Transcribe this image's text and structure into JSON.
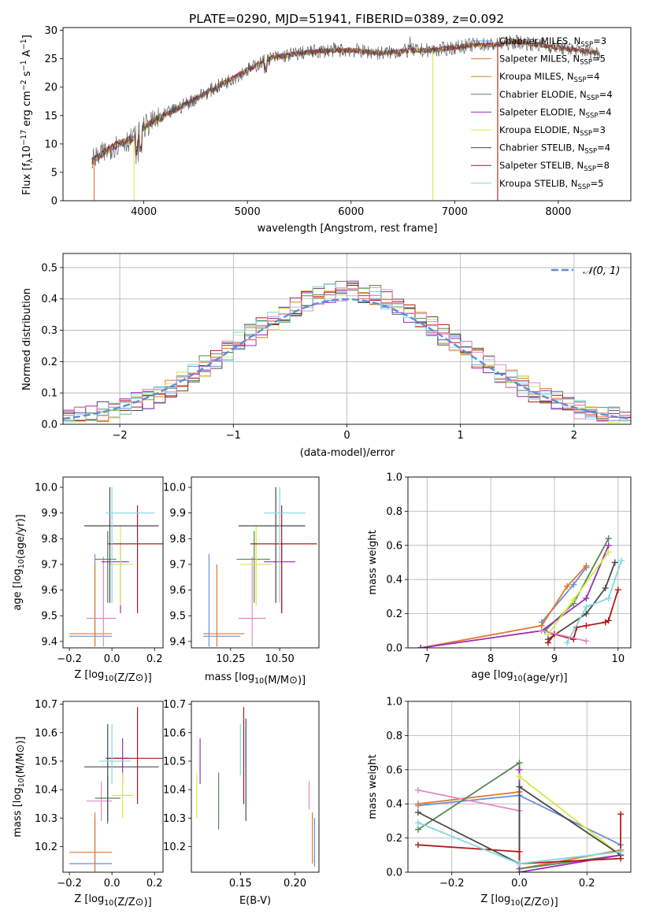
{
  "title": "PLATE=0290, MJD=51941, FIBERID=0389, z=0.092",
  "colors": {
    "Chabrier MILES": "#6a8fd8",
    "Salpeter MILES": "#e4772e",
    "Kroupa MILES": "#d2871e",
    "Chabrier ELODIE": "#558a55",
    "Salpeter ELODIE": "#9b2cb8",
    "Kroupa ELODIE": "#d7e84a",
    "Chabrier STELIB": "#4a4a4a",
    "Salpeter STELIB": "#b01a1a",
    "Kroupa STELIB": "#7fd8e0",
    "pink": "#e58ac0",
    "grid": "#b0b0b0",
    "dashed": "#5b8fd6"
  },
  "chart_data": [
    {
      "type": "line",
      "title": "PLATE=0290, MJD=51941, FIBERID=0389, z=0.092",
      "xlabel": "wavelength [Angstrom, rest frame]",
      "ylabel_parts": [
        "Flux [f",
        "λ",
        "10",
        "−17",
        " erg cm",
        "−2",
        " s",
        "−1",
        " A",
        "−1",
        "]"
      ],
      "xlim": [
        3220,
        8700
      ],
      "ylim": [
        0,
        30.5
      ],
      "xticks": [
        4000,
        5000,
        6000,
        7000,
        8000
      ],
      "yticks": [
        0,
        5,
        10,
        15,
        20,
        25,
        30
      ],
      "grid": false,
      "legend_position": "right",
      "legend": [
        {
          "name": "Chabrier MILES",
          "nssp": "3"
        },
        {
          "name": "Salpeter MILES",
          "nssp": "5"
        },
        {
          "name": "Kroupa MILES",
          "nssp": "4"
        },
        {
          "name": "Chabrier ELODIE",
          "nssp": "4"
        },
        {
          "name": "Salpeter ELODIE",
          "nssp": "4"
        },
        {
          "name": "Kroupa ELODIE",
          "nssp": "3"
        },
        {
          "name": "Chabrier STELIB",
          "nssp": "4"
        },
        {
          "name": "Salpeter STELIB",
          "nssp": "8"
        },
        {
          "name": "Kroupa STELIB",
          "nssp": "5"
        }
      ],
      "continuum": {
        "x": [
          3500,
          3700,
          3900,
          4000,
          4200,
          4500,
          4800,
          5000,
          5200,
          5500,
          5800,
          6000,
          6300,
          6600,
          6800,
          7000,
          7200,
          7400,
          7600,
          7800,
          8000,
          8200,
          8400
        ],
        "y": [
          7,
          9.5,
          11,
          13,
          15,
          18,
          21,
          23,
          25,
          26,
          26.5,
          26.5,
          26,
          26.5,
          26.5,
          27,
          27.5,
          27.5,
          28,
          27.5,
          27,
          26.5,
          26
        ]
      }
    },
    {
      "type": "histogram",
      "xlabel": "(data-model)/error",
      "ylabel": "Normed distribution",
      "xlim": [
        -2.5,
        2.5
      ],
      "ylim": [
        0,
        0.545
      ],
      "xticks": [
        -2,
        -1,
        0,
        1,
        2
      ],
      "xtick_labels": [
        "−2",
        "−1",
        "0",
        "1",
        "2"
      ],
      "yticks": [
        0,
        0.1,
        0.2,
        0.3,
        0.4,
        0.5
      ],
      "ytick_labels": [
        "0.0",
        "0.1",
        "0.2",
        "0.3",
        "0.4",
        "0.5"
      ],
      "grid": true,
      "legend": "𝒩(0, 1)",
      "legend_position": "top-right",
      "curve": "normal(0,1)"
    },
    {
      "type": "errorbar",
      "xlabel": "Z [log10(Z/Z⊙)]",
      "ylabel": "age  [log10(age/yr)]",
      "xlim": [
        -0.23,
        0.24
      ],
      "ylim": [
        9.375,
        10.04
      ],
      "xticks": [
        -0.2,
        0.0,
        0.2
      ],
      "xtick_labels": [
        "−0.2",
        "0.0",
        "0.2"
      ],
      "yticks": [
        9.4,
        9.5,
        9.6,
        9.7,
        9.8,
        9.9,
        10.0
      ],
      "ytick_labels": [
        "9.4",
        "9.5",
        "9.6",
        "9.7",
        "9.8",
        "9.9",
        "10.0"
      ],
      "points": [
        {
          "series": "Chabrier MILES",
          "x": -0.08,
          "xlo": -0.2,
          "xhi": 0.0,
          "y": 9.42,
          "ylo": 9.38,
          "yhi": 9.74
        },
        {
          "series": "Salpeter MILES",
          "x": -0.08,
          "xlo": -0.2,
          "xhi": 0.0,
          "y": 9.43,
          "ylo": 9.38,
          "yhi": 9.7
        },
        {
          "series": "pink",
          "x": -0.04,
          "xlo": -0.12,
          "xhi": 0.02,
          "y": 9.49,
          "ylo": 9.38,
          "yhi": 9.73
        },
        {
          "series": "Chabrier ELODIE",
          "x": -0.02,
          "xlo": -0.08,
          "xhi": 0.02,
          "y": 9.72,
          "ylo": 9.55,
          "yhi": 9.83
        },
        {
          "series": "Salpeter ELODIE",
          "x": 0.04,
          "xlo": -0.05,
          "xhi": 0.08,
          "y": 9.71,
          "ylo": 9.51,
          "yhi": 9.79
        },
        {
          "series": "Kroupa ELODIE",
          "x": 0.04,
          "xlo": -0.02,
          "xhi": 0.1,
          "y": 9.7,
          "ylo": 9.54,
          "yhi": 9.85
        },
        {
          "series": "Chabrier STELIB",
          "x": -0.01,
          "xlo": -0.13,
          "xhi": 0.22,
          "y": 9.85,
          "ylo": 9.55,
          "yhi": 10.0
        },
        {
          "series": "Salpeter STELIB",
          "x": 0.12,
          "xlo": -0.02,
          "xhi": 0.26,
          "y": 9.78,
          "ylo": 9.51,
          "yhi": 9.93
        },
        {
          "series": "Kroupa STELIB",
          "x": 0.0,
          "xlo": -0.03,
          "xhi": 0.2,
          "y": 9.9,
          "ylo": 9.55,
          "yhi": 10.0
        }
      ]
    },
    {
      "type": "errorbar",
      "xlabel": "mass [log10(M/M⊙)]",
      "ylabel": "",
      "xlim": [
        10.05,
        10.7
      ],
      "ylim": [
        9.375,
        10.04
      ],
      "xticks": [
        10.25,
        10.5
      ],
      "xtick_labels": [
        "10.25",
        "10.50"
      ],
      "yticks": [
        9.4,
        9.5,
        9.6,
        9.7,
        9.8,
        9.9,
        10.0
      ],
      "ytick_labels": [
        "9.4",
        "9.5",
        "9.6",
        "9.7",
        "9.8",
        "9.9",
        "10.0"
      ]
    },
    {
      "type": "line",
      "xlabel": "age  [log10(age/yr)]",
      "ylabel": "mass weight",
      "xlim": [
        6.7,
        10.2
      ],
      "ylim": [
        0,
        1.0
      ],
      "xticks": [
        7,
        8,
        9,
        10
      ],
      "xtick_labels": [
        "7",
        "8",
        "9",
        "10"
      ],
      "yticks": [
        0,
        0.2,
        0.4,
        0.6,
        0.8,
        1.0
      ],
      "ytick_labels": [
        "0.0",
        "0.2",
        "0.4",
        "0.6",
        "0.8",
        "1.0"
      ],
      "grid": true,
      "series": [
        {
          "name": "Chabrier MILES",
          "x": [
            8.8,
            9.3,
            9.5
          ],
          "y": [
            0.15,
            0.37,
            0.47
          ]
        },
        {
          "name": "Salpeter MILES",
          "x": [
            6.9,
            8.8,
            9.2,
            9.5
          ],
          "y": [
            0.0,
            0.13,
            0.36,
            0.48
          ]
        },
        {
          "name": "Chabrier ELODIE",
          "x": [
            8.85,
            9.3,
            9.85
          ],
          "y": [
            0.1,
            0.26,
            0.64
          ]
        },
        {
          "name": "Salpeter ELODIE",
          "x": [
            6.9,
            8.8,
            9.5,
            9.85
          ],
          "y": [
            0.0,
            0.1,
            0.29,
            0.6
          ]
        },
        {
          "name": "Kroupa ELODIE",
          "x": [
            8.9,
            9.3,
            9.85
          ],
          "y": [
            0.08,
            0.28,
            0.56
          ]
        },
        {
          "name": "Chabrier STELIB",
          "x": [
            8.9,
            9.5,
            9.8,
            9.95
          ],
          "y": [
            0.05,
            0.2,
            0.35,
            0.5
          ]
        },
        {
          "name": "Salpeter STELIB",
          "x": [
            8.9,
            9.0,
            9.3,
            9.35,
            9.5,
            9.8,
            9.85,
            10.0
          ],
          "y": [
            0.03,
            0.08,
            0.05,
            0.12,
            0.13,
            0.15,
            0.16,
            0.34
          ]
        },
        {
          "name": "Kroupa STELIB",
          "x": [
            9.2,
            9.5,
            9.85,
            10.05
          ],
          "y": [
            0.03,
            0.24,
            0.29,
            0.51
          ]
        },
        {
          "name": "pink",
          "x": [
            8.8,
            9.5
          ],
          "y": [
            0.1,
            0.04
          ]
        }
      ]
    },
    {
      "type": "errorbar",
      "xlabel": "Z [log10(Z/Z⊙)]",
      "ylabel": "mass [log10(M/M⊙)]",
      "xlim": [
        -0.23,
        0.24
      ],
      "ylim": [
        10.11,
        10.71
      ],
      "xticks": [
        -0.2,
        0.0,
        0.2
      ],
      "xtick_labels": [
        "−0.2",
        "0.0",
        "0.2"
      ],
      "yticks": [
        10.2,
        10.3,
        10.4,
        10.5,
        10.6,
        10.7
      ],
      "ytick_labels": [
        "10.2",
        "10.3",
        "10.4",
        "10.5",
        "10.6",
        "10.7"
      ],
      "points": [
        {
          "series": "Chabrier MILES",
          "x": -0.08,
          "xlo": -0.2,
          "xhi": 0.0,
          "y": 10.14,
          "ylo": 10.11,
          "yhi": 10.3
        },
        {
          "series": "Salpeter MILES",
          "x": -0.08,
          "xlo": -0.2,
          "xhi": 0.0,
          "y": 10.18,
          "ylo": 10.11,
          "yhi": 10.32
        },
        {
          "series": "pink",
          "x": -0.05,
          "xlo": -0.12,
          "xhi": 0.0,
          "y": 10.36,
          "ylo": 10.29,
          "yhi": 10.43
        },
        {
          "series": "Chabrier ELODIE",
          "x": -0.02,
          "xlo": -0.08,
          "xhi": 0.04,
          "y": 10.37,
          "ylo": 10.28,
          "yhi": 10.45
        },
        {
          "series": "Salpeter ELODIE",
          "x": 0.05,
          "xlo": -0.03,
          "xhi": 0.08,
          "y": 10.51,
          "ylo": 10.42,
          "yhi": 10.58
        },
        {
          "series": "Kroupa ELODIE",
          "x": 0.05,
          "xlo": 0.0,
          "xhi": 0.1,
          "y": 10.38,
          "ylo": 10.3,
          "yhi": 10.46
        },
        {
          "series": "Chabrier STELIB",
          "x": -0.02,
          "xlo": -0.13,
          "xhi": 0.22,
          "y": 10.48,
          "ylo": 10.29,
          "yhi": 10.63
        },
        {
          "series": "Salpeter STELIB",
          "x": 0.12,
          "xlo": -0.02,
          "xhi": 0.26,
          "y": 10.51,
          "ylo": 10.35,
          "yhi": 10.69
        },
        {
          "series": "Kroupa STELIB",
          "x": 0.0,
          "xlo": -0.06,
          "xhi": 0.09,
          "y": 10.5,
          "ylo": 10.42,
          "yhi": 10.63
        }
      ]
    },
    {
      "type": "errorbar",
      "xlabel": "E(B-V)",
      "ylabel": "",
      "xlim": [
        0.105,
        0.222
      ],
      "ylim": [
        10.11,
        10.71
      ],
      "xticks": [
        0.15,
        0.2
      ],
      "xtick_labels": [
        "0.15",
        "0.20"
      ],
      "yticks": [
        10.2,
        10.3,
        10.4,
        10.5,
        10.6,
        10.7
      ],
      "ytick_labels": [
        "10.2",
        "10.3",
        "10.4",
        "10.5",
        "10.6",
        "10.7"
      ],
      "points": [
        {
          "series": "Kroupa ELODIE",
          "x": 0.11,
          "ylo": 10.3,
          "yhi": 10.46
        },
        {
          "series": "Salpeter ELODIE",
          "x": 0.113,
          "ylo": 10.42,
          "yhi": 10.58
        },
        {
          "series": "Chabrier ELODIE",
          "x": 0.13,
          "ylo": 10.26,
          "yhi": 10.46
        },
        {
          "series": "Kroupa STELIB",
          "x": 0.15,
          "ylo": 10.45,
          "yhi": 10.63
        },
        {
          "series": "Salpeter STELIB",
          "x": 0.153,
          "ylo": 10.35,
          "yhi": 10.69
        },
        {
          "series": "Chabrier STELIB",
          "x": 0.155,
          "ylo": 10.29,
          "yhi": 10.65
        },
        {
          "series": "pink",
          "x": 0.213,
          "ylo": 10.33,
          "yhi": 10.43
        },
        {
          "series": "Salpeter MILES",
          "x": 0.216,
          "ylo": 10.14,
          "yhi": 10.32
        },
        {
          "series": "Chabrier MILES",
          "x": 0.218,
          "ylo": 10.13,
          "yhi": 10.3
        }
      ]
    },
    {
      "type": "line",
      "xlabel": "Z [log10(Z/Z⊙)]",
      "ylabel": "mass weight",
      "xlim": [
        -0.33,
        0.33
      ],
      "ylim": [
        0,
        1.0
      ],
      "xticks": [
        -0.2,
        0.0,
        0.2
      ],
      "xtick_labels": [
        "−0.2",
        "0.0",
        "0.2"
      ],
      "yticks": [
        0,
        0.2,
        0.4,
        0.6,
        0.8,
        1.0
      ],
      "ytick_labels": [
        "0.0",
        "0.2",
        "0.4",
        "0.6",
        "0.8",
        "1.0"
      ],
      "grid": true,
      "series": [
        {
          "name": "Chabrier MILES",
          "x": [
            -0.3,
            0.0,
            0.3
          ],
          "y": [
            0.39,
            0.45,
            0.16
          ]
        },
        {
          "name": "Salpeter MILES",
          "x": [
            -0.3,
            0.0,
            0.0,
            0.3
          ],
          "y": [
            0.4,
            0.47,
            0.02,
            0.13
          ]
        },
        {
          "name": "pink",
          "x": [
            -0.3,
            0.0
          ],
          "y": [
            0.48,
            0.36
          ]
        },
        {
          "name": "Chabrier ELODIE",
          "x": [
            -0.3,
            0.0,
            0.0,
            0.3
          ],
          "y": [
            0.25,
            0.64,
            0.02,
            0.1
          ]
        },
        {
          "name": "Salpeter ELODIE",
          "x": [
            0.0,
            0.0,
            0.3
          ],
          "y": [
            0.6,
            0.0,
            0.1
          ]
        },
        {
          "name": "Kroupa ELODIE",
          "x": [
            0.0,
            0.3
          ],
          "y": [
            0.56,
            0.1
          ]
        },
        {
          "name": "Chabrier STELIB",
          "x": [
            -0.3,
            0.0,
            0.0,
            0.3
          ],
          "y": [
            0.35,
            0.05,
            0.5,
            0.1
          ]
        },
        {
          "name": "Salpeter STELIB",
          "x": [
            -0.3,
            0.0,
            0.0,
            0.3,
            0.3
          ],
          "y": [
            0.16,
            0.12,
            0.05,
            0.08,
            0.34
          ]
        },
        {
          "name": "Kroupa STELIB",
          "x": [
            -0.3,
            0.0,
            0.3
          ],
          "y": [
            0.29,
            0.05,
            0.12
          ]
        }
      ]
    }
  ]
}
